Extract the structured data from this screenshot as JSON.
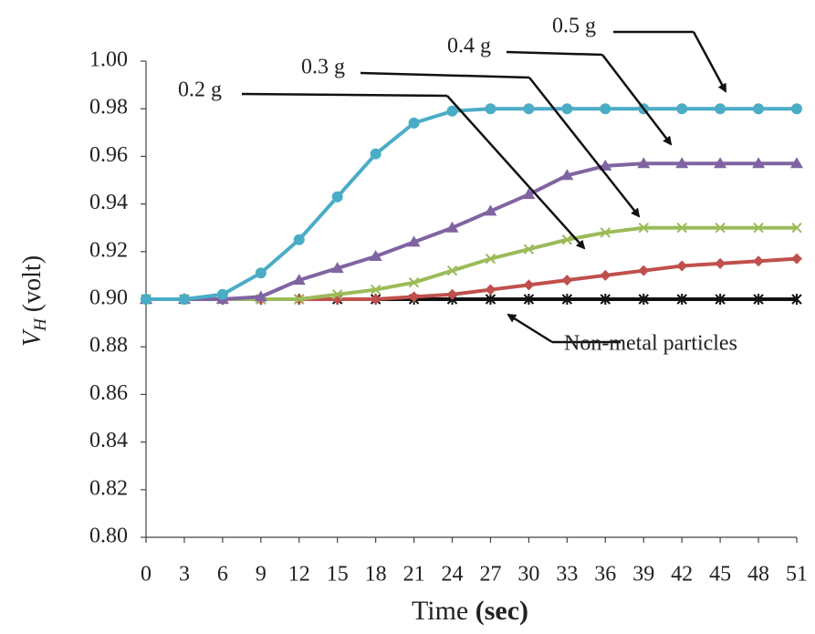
{
  "chart_data": {
    "type": "line",
    "y_label": "V",
    "y_label_sub": "H",
    "y_label_unit": "(volt)",
    "x_label": "Time",
    "x_label_unit": "(sec)",
    "x": [
      0,
      3,
      6,
      9,
      12,
      15,
      18,
      21,
      24,
      27,
      30,
      33,
      36,
      39,
      42,
      45,
      48,
      51
    ],
    "xlim": [
      0,
      51
    ],
    "xticks": [
      0,
      3,
      6,
      9,
      12,
      15,
      18,
      21,
      24,
      27,
      30,
      33,
      36,
      39,
      42,
      45,
      48,
      51
    ],
    "ylim": [
      0.8,
      1.0
    ],
    "yticks": [
      {
        "value": 0.8,
        "label": "0.80"
      },
      0.82,
      0.84,
      0.86,
      0.88,
      {
        "value": 0.9,
        "label": "0.90"
      },
      0.92,
      0.94,
      0.96,
      0.98,
      {
        "value": 1.0,
        "label": "1.00"
      }
    ],
    "series": [
      {
        "name": "Non-metal particles",
        "color": "#111111",
        "marker": "asterisk",
        "values": [
          0.9,
          0.9,
          0.9,
          0.9,
          0.9,
          0.9,
          0.9,
          0.9,
          0.9,
          0.9,
          0.9,
          0.9,
          0.9,
          0.9,
          0.9,
          0.9,
          0.9,
          0.9
        ]
      },
      {
        "name": "0.2 g",
        "color": "#c0504d",
        "marker": "diamond",
        "values": [
          0.9,
          0.9,
          0.9,
          0.9,
          0.9,
          0.9,
          0.9,
          0.901,
          0.902,
          0.904,
          0.906,
          0.908,
          0.91,
          0.912,
          0.914,
          0.915,
          0.916,
          0.917
        ]
      },
      {
        "name": "0.3 g",
        "color": "#9bbb59",
        "marker": "cross",
        "values": [
          0.9,
          0.9,
          0.9,
          0.9,
          0.9,
          0.902,
          0.904,
          0.907,
          0.912,
          0.917,
          0.921,
          0.925,
          0.928,
          0.93,
          0.93,
          0.93,
          0.93,
          0.93
        ]
      },
      {
        "name": "0.4 g",
        "color": "#8064a2",
        "marker": "triangle",
        "values": [
          0.9,
          0.9,
          0.9,
          0.901,
          0.908,
          0.913,
          0.918,
          0.924,
          0.93,
          0.937,
          0.944,
          0.952,
          0.956,
          0.957,
          0.957,
          0.957,
          0.957,
          0.957
        ]
      },
      {
        "name": "0.5 g",
        "color": "#4bacc6",
        "marker": "circle",
        "values": [
          0.9,
          0.9,
          0.902,
          0.911,
          0.925,
          0.943,
          0.961,
          0.974,
          0.979,
          0.98,
          0.98,
          0.98,
          0.98,
          0.98,
          0.98,
          0.98,
          0.98,
          0.98
        ]
      }
    ]
  }
}
